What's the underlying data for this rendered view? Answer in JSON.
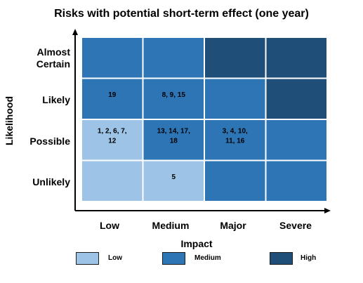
{
  "colors": {
    "low": "#9dc3e6",
    "medium": "#2e75b6",
    "high": "#1f4e79"
  },
  "chart_data": {
    "type": "heatmap",
    "title": "Risks with potential short-term effect (one year)",
    "xlabel": "Impact",
    "ylabel": "Likelihood",
    "x_categories": [
      "Low",
      "Medium",
      "Major",
      "Severe"
    ],
    "y_categories": [
      "Almost Certain",
      "Likely",
      "Possible",
      "Unlikely"
    ],
    "levels": [
      "Low",
      "Medium",
      "High"
    ],
    "cells": [
      {
        "row": 0,
        "col": 0,
        "level": "Medium",
        "label": ""
      },
      {
        "row": 0,
        "col": 1,
        "level": "Medium",
        "label": ""
      },
      {
        "row": 0,
        "col": 2,
        "level": "High",
        "label": ""
      },
      {
        "row": 0,
        "col": 3,
        "level": "High",
        "label": ""
      },
      {
        "row": 1,
        "col": 0,
        "level": "Medium",
        "label": "19"
      },
      {
        "row": 1,
        "col": 1,
        "level": "Medium",
        "label": "8, 9, 15"
      },
      {
        "row": 1,
        "col": 2,
        "level": "Medium",
        "label": ""
      },
      {
        "row": 1,
        "col": 3,
        "level": "High",
        "label": ""
      },
      {
        "row": 2,
        "col": 0,
        "level": "Low",
        "label": "1, 2, 6, 7, 12"
      },
      {
        "row": 2,
        "col": 1,
        "level": "Medium",
        "label": "13, 14, 17, 18"
      },
      {
        "row": 2,
        "col": 2,
        "level": "Medium",
        "label": "3, 4, 10, 11, 16"
      },
      {
        "row": 2,
        "col": 3,
        "level": "Medium",
        "label": ""
      },
      {
        "row": 3,
        "col": 0,
        "level": "Low",
        "label": ""
      },
      {
        "row": 3,
        "col": 1,
        "level": "Low",
        "label": "5"
      },
      {
        "row": 3,
        "col": 2,
        "level": "Medium",
        "label": ""
      },
      {
        "row": 3,
        "col": 3,
        "level": "Medium",
        "label": ""
      }
    ],
    "legend": [
      {
        "label": "Low",
        "level": "Low"
      },
      {
        "label": "Medium",
        "level": "Medium"
      },
      {
        "label": "High",
        "level": "High"
      }
    ]
  }
}
